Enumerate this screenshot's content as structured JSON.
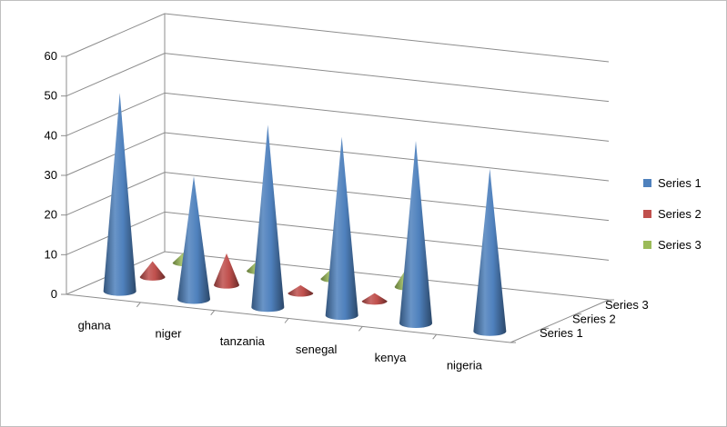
{
  "chart_data": {
    "type": "bar",
    "subtype": "3d-cone",
    "title": "",
    "xlabel": "",
    "ylabel": "",
    "ylim": [
      0,
      60
    ],
    "yticks": [
      0,
      10,
      20,
      30,
      40,
      50,
      60
    ],
    "grid": true,
    "legend_position": "right",
    "categories": [
      "ghana",
      "niger",
      "tanzania",
      "senegal",
      "kenya",
      "nigeria"
    ],
    "series": [
      {
        "name": "Series 1",
        "color": "#4f81bd",
        "values": [
          50,
          31,
          46,
          45,
          46,
          41
        ]
      },
      {
        "name": "Series 2",
        "color": "#c0504d",
        "values": [
          4,
          8,
          2,
          2,
          0,
          0
        ]
      },
      {
        "name": "Series 3",
        "color": "#9bbb59",
        "values": [
          3,
          3,
          3,
          5,
          0,
          0
        ]
      }
    ],
    "depth_labels": [
      "Series 3",
      "Series 2",
      "Series 1"
    ]
  }
}
